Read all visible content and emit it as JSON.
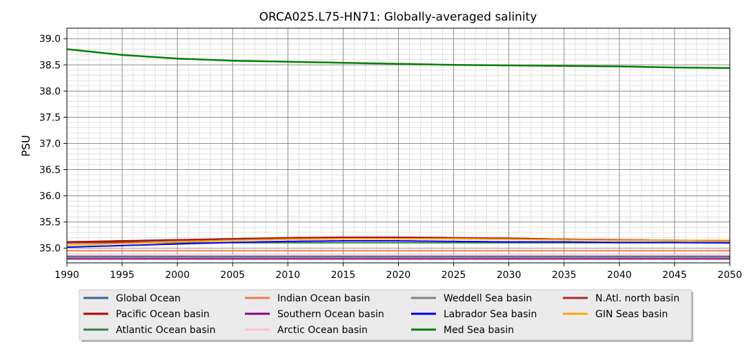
{
  "chart_data": {
    "type": "line",
    "title": "ORCA025.L75-HN71: Globally-averaged salinity",
    "xlabel": "",
    "ylabel": "PSU",
    "xlim": [
      1990,
      2050
    ],
    "ylim": [
      34.72,
      39.2
    ],
    "xticks": [
      1990,
      1995,
      2000,
      2005,
      2010,
      2015,
      2020,
      2025,
      2030,
      2035,
      2040,
      2045,
      2050
    ],
    "xtick_labels": [
      "1990",
      "1995",
      "2000",
      "2005",
      "2010",
      "2015",
      "2020",
      "2025",
      "2030",
      "2035",
      "2040",
      "2045",
      "2050"
    ],
    "yticks": [
      35.0,
      35.5,
      36.0,
      36.5,
      37.0,
      37.5,
      38.0,
      38.5,
      39.0
    ],
    "ytick_labels": [
      "35.0",
      "35.5",
      "36.0",
      "36.5",
      "37.0",
      "37.5",
      "38.0",
      "38.5",
      "39.0"
    ],
    "grid": true,
    "minor_grid": true,
    "legend_position": "bottom, outside plot, 4 columns",
    "x": [
      1990,
      1995,
      2000,
      2005,
      2010,
      2015,
      2020,
      2025,
      2030,
      2035,
      2040,
      2045,
      2050
    ],
    "series": [
      {
        "name": "Global Ocean",
        "color": "#3a5f9a",
        "values": [
          34.85,
          34.85,
          34.85,
          34.85,
          34.85,
          34.85,
          34.85,
          34.85,
          34.85,
          34.85,
          34.85,
          34.85,
          34.85
        ]
      },
      {
        "name": "Pacific Ocean basin",
        "color": "#b00000",
        "values": [
          35.12,
          35.14,
          35.16,
          35.18,
          35.2,
          35.21,
          35.21,
          35.2,
          35.19,
          35.17,
          35.16,
          35.15,
          35.14
        ]
      },
      {
        "name": "Atlantic Ocean basin",
        "color": "#3c7a44",
        "values": [
          35.1,
          35.1,
          35.1,
          35.1,
          35.1,
          35.1,
          35.1,
          35.1,
          35.1,
          35.1,
          35.1,
          35.1,
          35.1
        ]
      },
      {
        "name": "Indian Ocean basin",
        "color": "#f07848",
        "values": [
          34.95,
          34.95,
          34.95,
          34.95,
          34.95,
          34.95,
          34.95,
          34.95,
          34.95,
          34.95,
          34.95,
          34.95,
          34.95
        ]
      },
      {
        "name": "Southern Ocean basin",
        "color": "#8b008b",
        "values": [
          34.8,
          34.8,
          34.8,
          34.8,
          34.8,
          34.8,
          34.8,
          34.8,
          34.8,
          34.8,
          34.8,
          34.8,
          34.8
        ]
      },
      {
        "name": "Arctic Ocean basin",
        "color": "#ffc0cb",
        "values": [
          34.88,
          34.88,
          34.88,
          34.88,
          34.88,
          34.88,
          34.88,
          34.88,
          34.88,
          34.88,
          34.88,
          34.88,
          34.88
        ]
      },
      {
        "name": "Weddell Sea basin",
        "color": "#808080",
        "values": [
          34.83,
          34.83,
          34.83,
          34.83,
          34.83,
          34.83,
          34.83,
          34.83,
          34.83,
          34.83,
          34.83,
          34.83,
          34.83
        ]
      },
      {
        "name": "Labrador Sea basin",
        "color": "#0000ee",
        "values": [
          35.02,
          35.05,
          35.08,
          35.11,
          35.13,
          35.14,
          35.14,
          35.13,
          35.12,
          35.12,
          35.11,
          35.11,
          35.1
        ]
      },
      {
        "name": "Med Sea basin",
        "color": "#008000",
        "values": [
          38.8,
          38.69,
          38.62,
          38.58,
          38.56,
          38.54,
          38.52,
          38.5,
          38.49,
          38.48,
          38.47,
          38.45,
          38.44
        ]
      },
      {
        "name": "N.Atl. north basin",
        "color": "#a52a2a",
        "values": [
          35.1,
          35.12,
          35.15,
          35.17,
          35.19,
          35.2,
          35.2,
          35.19,
          35.18,
          35.17,
          35.16,
          35.15,
          35.14
        ]
      },
      {
        "name": "GIN Seas basin",
        "color": "#ffa500",
        "values": [
          35.06,
          35.09,
          35.12,
          35.15,
          35.17,
          35.18,
          35.18,
          35.18,
          35.17,
          35.16,
          35.15,
          35.15,
          35.15
        ]
      }
    ]
  }
}
